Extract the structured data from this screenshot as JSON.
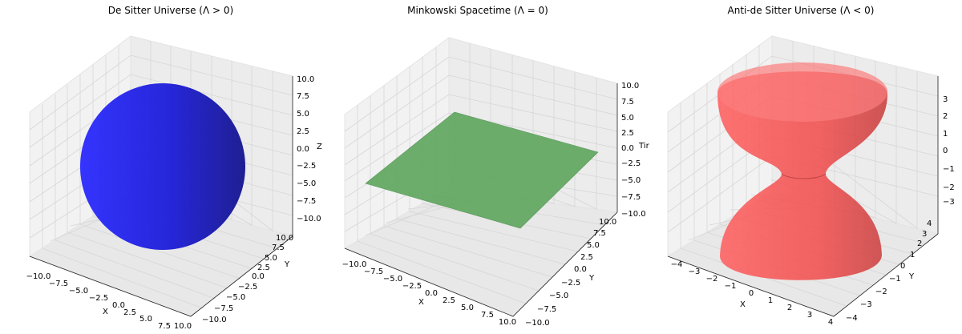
{
  "figure": {
    "background": "#ffffff"
  },
  "chart_data": [
    {
      "type": "surface3d",
      "title": "De Sitter Universe (Λ > 0)",
      "surface": "sphere",
      "radius": 10,
      "color": "#1c1cf0",
      "xlabel": "X",
      "ylabel": "Y",
      "zlabel": "Z",
      "xlim": [
        -10,
        10
      ],
      "ylim": [
        -10,
        10
      ],
      "zlim": [
        -10,
        10
      ],
      "xticks": [
        "−10.0",
        "−7.5",
        "−5.0",
        "−2.5",
        "0.0",
        "2.5",
        "5.0",
        "7.5",
        "10.0"
      ],
      "yticks": [
        "−10.0",
        "−7.5",
        "−5.0",
        "−2.5",
        "0.0",
        "2.5",
        "5.0",
        "7.5",
        "10.0"
      ],
      "zticks": [
        "−10.0",
        "−7.5",
        "−5.0",
        "−2.5",
        "0.0",
        "2.5",
        "5.0",
        "7.5",
        "10.0"
      ]
    },
    {
      "type": "surface3d",
      "title": "Minkowski Spacetime (Λ = 0)",
      "surface": "plane",
      "plane_z": 0,
      "extent": 10,
      "color": "#4f9a4f",
      "xlabel": "X",
      "ylabel": "Y",
      "zlabel": "Tir",
      "xlim": [
        -10,
        10
      ],
      "ylim": [
        -10,
        10
      ],
      "zlim": [
        -10,
        10
      ],
      "xticks": [
        "−10.0",
        "−7.5",
        "−5.0",
        "−2.5",
        "0.0",
        "2.5",
        "5.0",
        "7.5",
        "10.0"
      ],
      "yticks": [
        "−10.0",
        "−7.5",
        "−5.0",
        "−2.5",
        "0.0",
        "2.5",
        "5.0",
        "7.5",
        "10.0"
      ],
      "zticks": [
        "−10.0",
        "−7.5",
        "−5.0",
        "−2.5",
        "0.0",
        "2.5",
        "5.0",
        "7.5",
        "10.0"
      ]
    },
    {
      "type": "surface3d",
      "title": "Anti-de Sitter Universe (Λ < 0)",
      "surface": "hyperboloid",
      "waist_radius": 1,
      "z_range": [
        -3,
        3
      ],
      "color": "#ff4040",
      "xlabel": "X",
      "ylabel": "Y",
      "zlabel": "",
      "xlim": [
        -4,
        4
      ],
      "ylim": [
        -4,
        4
      ],
      "zlim": [
        -3.5,
        3.5
      ],
      "xticks": [
        "−4",
        "−3",
        "−2",
        "−1",
        "0",
        "1",
        "2",
        "3",
        "4"
      ],
      "yticks": [
        "−4",
        "−3",
        "−2",
        "−1",
        "0",
        "1",
        "2",
        "3",
        "4"
      ],
      "zticks": [
        "−3",
        "−2",
        "−1",
        "0",
        "1",
        "2",
        "3"
      ]
    }
  ]
}
